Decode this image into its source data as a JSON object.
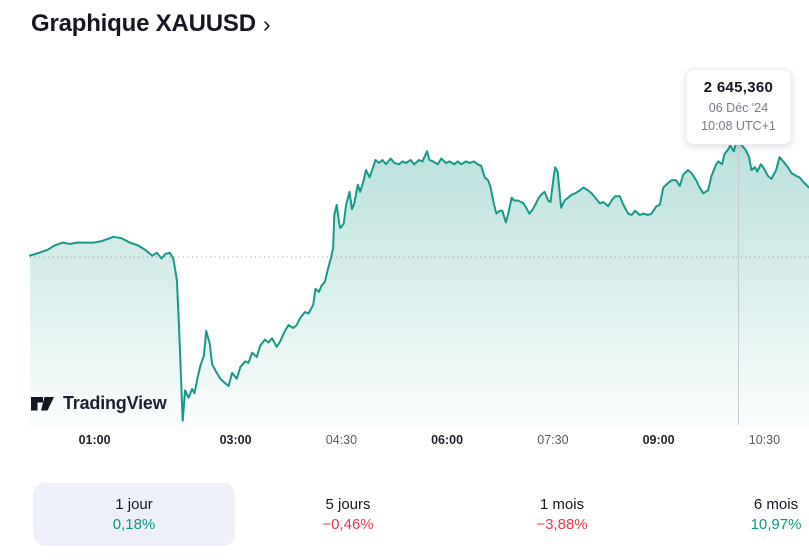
{
  "header": {
    "title": "Graphique XAUUSD",
    "chevron": "›"
  },
  "tooltip": {
    "price": "2 645,360",
    "date": "06 Déc '24",
    "time": "10:08 UTC+1"
  },
  "watermark": {
    "brand": "TradingView"
  },
  "x_axis": {
    "ticks": [
      {
        "label": "01:00",
        "emphasis": true
      },
      {
        "label": "03:00",
        "emphasis": true
      },
      {
        "label": "04:30",
        "emphasis": false
      },
      {
        "label": "06:00",
        "emphasis": true
      },
      {
        "label": "07:30",
        "emphasis": false
      },
      {
        "label": "09:00",
        "emphasis": true
      },
      {
        "label": "10:30",
        "emphasis": false
      }
    ]
  },
  "tabs": [
    {
      "label": "1 jour",
      "change": "0,18%",
      "direction": "up",
      "selected": true
    },
    {
      "label": "5 jours",
      "change": "−0,46%",
      "direction": "down",
      "selected": false
    },
    {
      "label": "1 mois",
      "change": "−3,88%",
      "direction": "down",
      "selected": false
    },
    {
      "label": "6 mois",
      "change": "10,97%",
      "direction": "up",
      "selected": false
    }
  ],
  "colors": {
    "line": "#17998a",
    "fill_top": "rgba(23,153,138,0.30)",
    "fill_bottom": "rgba(23,153,138,0.02)",
    "up": "#089981",
    "down": "#f23645",
    "baseline": "#9598a1",
    "crosshair": "#c6c9d4",
    "text_dark": "#131722",
    "text_gray": "#787b86",
    "tab_selected_bg": "#eef0f9"
  },
  "chart_data": {
    "type": "area",
    "symbol": "XAUUSD",
    "title": "Graphique XAUUSD",
    "timezone": "UTC+1",
    "baseline_value": 2637.3,
    "marker": {
      "time": "10:08",
      "value": 2645.36,
      "price_label": "2 645,360",
      "date": "06 Déc '24"
    },
    "x_range": [
      "00:05",
      "11:08"
    ],
    "ylim": [
      2625.5,
      2650.9
    ],
    "grid": "baseline-dotted-only",
    "legend": "none",
    "x_ticks": [
      "01:00",
      "03:00",
      "04:30",
      "06:00",
      "07:30",
      "09:00",
      "10:30"
    ],
    "points": [
      [
        "00:05",
        2637.4
      ],
      [
        "00:13",
        2637.6
      ],
      [
        "00:20",
        2637.8
      ],
      [
        "00:26",
        2638.1
      ],
      [
        "00:33",
        2638.3
      ],
      [
        "00:39",
        2638.2
      ],
      [
        "00:45",
        2638.3
      ],
      [
        "00:52",
        2638.3
      ],
      [
        "00:59",
        2638.3
      ],
      [
        "01:06",
        2638.4
      ],
      [
        "01:13",
        2638.6
      ],
      [
        "01:16",
        2638.7
      ],
      [
        "01:23",
        2638.6
      ],
      [
        "01:30",
        2638.3
      ],
      [
        "01:37",
        2638.1
      ],
      [
        "01:43",
        2637.8
      ],
      [
        "01:49",
        2637.4
      ],
      [
        "01:53",
        2637.6
      ],
      [
        "01:57",
        2637.2
      ],
      [
        "02:00",
        2637.5
      ],
      [
        "02:04",
        2637.6
      ],
      [
        "02:07",
        2637.2
      ],
      [
        "02:10",
        2635.7
      ],
      [
        "02:12",
        2632.2
      ],
      [
        "02:15",
        2626.0
      ],
      [
        "02:17",
        2628.1
      ],
      [
        "02:20",
        2627.6
      ],
      [
        "02:23",
        2628.2
      ],
      [
        "02:25",
        2627.9
      ],
      [
        "02:28",
        2629.1
      ],
      [
        "02:30",
        2629.8
      ],
      [
        "02:33",
        2630.5
      ],
      [
        "02:35",
        2632.2
      ],
      [
        "02:38",
        2631.3
      ],
      [
        "02:40",
        2629.9
      ],
      [
        "02:44",
        2629.3
      ],
      [
        "02:47",
        2628.9
      ],
      [
        "02:51",
        2628.6
      ],
      [
        "02:54",
        2628.4
      ],
      [
        "02:57",
        2629.3
      ],
      [
        "03:01",
        2628.9
      ],
      [
        "03:04",
        2629.7
      ],
      [
        "03:08",
        2630.1
      ],
      [
        "03:11",
        2630.0
      ],
      [
        "03:14",
        2630.7
      ],
      [
        "03:18",
        2630.4
      ],
      [
        "03:21",
        2631.2
      ],
      [
        "03:25",
        2631.6
      ],
      [
        "03:28",
        2631.4
      ],
      [
        "03:31",
        2631.7
      ],
      [
        "03:35",
        2631.1
      ],
      [
        "03:38",
        2631.5
      ],
      [
        "03:42",
        2632.2
      ],
      [
        "03:45",
        2632.6
      ],
      [
        "03:49",
        2632.4
      ],
      [
        "03:52",
        2632.6
      ],
      [
        "03:55",
        2633.1
      ],
      [
        "03:59",
        2633.5
      ],
      [
        "04:02",
        2633.4
      ],
      [
        "04:06",
        2634.0
      ],
      [
        "04:08",
        2635.1
      ],
      [
        "04:11",
        2634.9
      ],
      [
        "04:13",
        2635.3
      ],
      [
        "04:16",
        2635.6
      ],
      [
        "04:18",
        2636.3
      ],
      [
        "04:21",
        2637.2
      ],
      [
        "04:23",
        2637.9
      ],
      [
        "04:24",
        2640.2
      ],
      [
        "04:26",
        2640.9
      ],
      [
        "04:28",
        2639.7
      ],
      [
        "04:29",
        2639.3
      ],
      [
        "04:32",
        2639.6
      ],
      [
        "04:34",
        2640.9
      ],
      [
        "04:37",
        2641.8
      ],
      [
        "04:39",
        2640.6
      ],
      [
        "04:41",
        2641.0
      ],
      [
        "04:44",
        2642.3
      ],
      [
        "04:46",
        2641.8
      ],
      [
        "04:49",
        2642.6
      ],
      [
        "04:51",
        2643.3
      ],
      [
        "04:54",
        2642.8
      ],
      [
        "04:57",
        2643.5
      ],
      [
        "04:59",
        2644.0
      ],
      [
        "05:02",
        2643.8
      ],
      [
        "05:05",
        2644.0
      ],
      [
        "05:08",
        2643.7
      ],
      [
        "05:12",
        2644.1
      ],
      [
        "05:15",
        2643.8
      ],
      [
        "05:19",
        2643.7
      ],
      [
        "05:22",
        2643.9
      ],
      [
        "05:25",
        2643.8
      ],
      [
        "05:29",
        2644.0
      ],
      [
        "05:32",
        2643.7
      ],
      [
        "05:36",
        2644.0
      ],
      [
        "05:39",
        2643.9
      ],
      [
        "05:43",
        2644.6
      ],
      [
        "05:45",
        2644.0
      ],
      [
        "05:48",
        2643.9
      ],
      [
        "05:52",
        2643.7
      ],
      [
        "05:55",
        2644.1
      ],
      [
        "05:59",
        2643.8
      ],
      [
        "06:02",
        2643.9
      ],
      [
        "06:06",
        2643.7
      ],
      [
        "06:09",
        2643.9
      ],
      [
        "06:12",
        2643.7
      ],
      [
        "06:16",
        2643.9
      ],
      [
        "06:19",
        2643.8
      ],
      [
        "06:23",
        2643.9
      ],
      [
        "06:26",
        2643.7
      ],
      [
        "06:29",
        2643.6
      ],
      [
        "06:32",
        2642.8
      ],
      [
        "06:35",
        2642.6
      ],
      [
        "06:37",
        2642.1
      ],
      [
        "06:40",
        2640.9
      ],
      [
        "06:42",
        2640.3
      ],
      [
        "06:45",
        2640.5
      ],
      [
        "06:47",
        2640.5
      ],
      [
        "06:50",
        2639.7
      ],
      [
        "06:52",
        2640.3
      ],
      [
        "06:55",
        2641.4
      ],
      [
        "06:57",
        2641.2
      ],
      [
        "07:00",
        2641.2
      ],
      [
        "07:03",
        2641.1
      ],
      [
        "07:05",
        2641.0
      ],
      [
        "07:08",
        2640.6
      ],
      [
        "07:10",
        2640.3
      ],
      [
        "07:13",
        2640.6
      ],
      [
        "07:15",
        2640.9
      ],
      [
        "07:18",
        2641.4
      ],
      [
        "07:20",
        2641.6
      ],
      [
        "07:23",
        2641.8
      ],
      [
        "07:26",
        2641.2
      ],
      [
        "07:28",
        2641.1
      ],
      [
        "07:31",
        2643.0
      ],
      [
        "07:32",
        2643.5
      ],
      [
        "07:34",
        2643.2
      ],
      [
        "07:36",
        2641.6
      ],
      [
        "07:37",
        2640.7
      ],
      [
        "07:40",
        2641.2
      ],
      [
        "07:43",
        2641.4
      ],
      [
        "07:46",
        2641.6
      ],
      [
        "07:49",
        2641.7
      ],
      [
        "07:53",
        2641.9
      ],
      [
        "07:56",
        2642.1
      ],
      [
        "08:00",
        2641.9
      ],
      [
        "08:03",
        2641.7
      ],
      [
        "08:06",
        2641.4
      ],
      [
        "08:10",
        2641.0
      ],
      [
        "08:13",
        2641.1
      ],
      [
        "08:17",
        2640.8
      ],
      [
        "08:20",
        2641.2
      ],
      [
        "08:23",
        2641.5
      ],
      [
        "08:27",
        2641.5
      ],
      [
        "08:30",
        2640.9
      ],
      [
        "08:34",
        2640.3
      ],
      [
        "08:37",
        2640.2
      ],
      [
        "08:40",
        2640.5
      ],
      [
        "08:44",
        2640.2
      ],
      [
        "08:47",
        2640.3
      ],
      [
        "08:51",
        2640.2
      ],
      [
        "08:54",
        2640.3
      ],
      [
        "08:58",
        2640.8
      ],
      [
        "09:01",
        2640.9
      ],
      [
        "09:04",
        2642.1
      ],
      [
        "09:08",
        2642.4
      ],
      [
        "09:11",
        2642.6
      ],
      [
        "09:15",
        2642.6
      ],
      [
        "09:18",
        2642.2
      ],
      [
        "09:21",
        2643.0
      ],
      [
        "09:25",
        2643.3
      ],
      [
        "09:28",
        2643.1
      ],
      [
        "09:32",
        2642.6
      ],
      [
        "09:35",
        2642.1
      ],
      [
        "09:38",
        2641.7
      ],
      [
        "09:42",
        2641.9
      ],
      [
        "09:45",
        2642.9
      ],
      [
        "09:49",
        2643.7
      ],
      [
        "09:51",
        2643.9
      ],
      [
        "09:54",
        2643.7
      ],
      [
        "09:56",
        2644.4
      ],
      [
        "09:59",
        2644.7
      ],
      [
        "10:01",
        2645.0
      ],
      [
        "10:04",
        2644.6
      ],
      [
        "10:06",
        2645.2
      ],
      [
        "10:08",
        2645.36
      ],
      [
        "10:11",
        2645.0
      ],
      [
        "10:14",
        2644.7
      ],
      [
        "10:17",
        2644.2
      ],
      [
        "10:19",
        2643.3
      ],
      [
        "10:22",
        2643.5
      ],
      [
        "10:24",
        2643.2
      ],
      [
        "10:27",
        2643.7
      ],
      [
        "10:29",
        2643.5
      ],
      [
        "10:33",
        2642.9
      ],
      [
        "10:36",
        2642.7
      ],
      [
        "10:40",
        2643.3
      ],
      [
        "10:43",
        2644.2
      ],
      [
        "10:46",
        2643.9
      ],
      [
        "10:50",
        2643.5
      ],
      [
        "10:53",
        2643.1
      ],
      [
        "10:57",
        2642.9
      ],
      [
        "11:00",
        2642.8
      ],
      [
        "11:03",
        2642.5
      ],
      [
        "11:08",
        2642.1
      ]
    ]
  }
}
